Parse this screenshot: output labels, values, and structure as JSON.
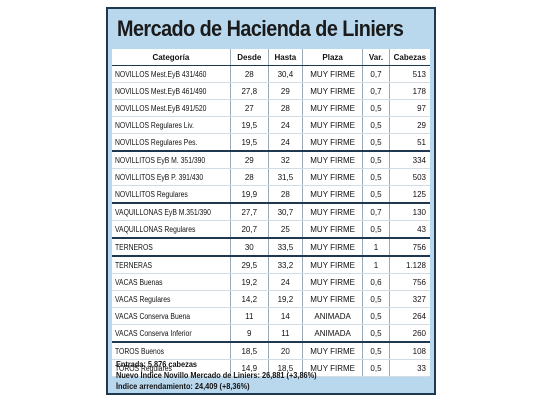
{
  "title": "Mercado de Hacienda de Liniers",
  "headers": [
    "Categoría",
    "Desde",
    "Hasta",
    "Plaza",
    "Var.",
    "Cabezas"
  ],
  "rows": [
    [
      "NOVILLOS Mest.EyB 431/460",
      "28",
      "30,4",
      "MUY FIRME",
      "0,7",
      "513"
    ],
    [
      "NOVILLOS Mest.EyB 461/490",
      "27,8",
      "29",
      "MUY FIRME",
      "0,7",
      "178"
    ],
    [
      "NOVILLOS Mest.EyB 491/520",
      "27",
      "28",
      "MUY FIRME",
      "0,5",
      "97"
    ],
    [
      "NOVILLOS Regulares Liv.",
      "19,5",
      "24",
      "MUY FIRME",
      "0,5",
      "29"
    ],
    [
      "NOVILLOS Regulares Pes.",
      "19,5",
      "24",
      "MUY FIRME",
      "0,5",
      "51"
    ],
    [
      "NOVILLITOS EyB M. 351/390",
      "29",
      "32",
      "MUY FIRME",
      "0,5",
      "334"
    ],
    [
      "NOVILLITOS EyB P. 391/430",
      "28",
      "31,5",
      "MUY FIRME",
      "0,5",
      "503"
    ],
    [
      "NOVILLITOS Regulares",
      "19,9",
      "28",
      "MUY FIRME",
      "0,5",
      "125"
    ],
    [
      "VAQUILLONAS EyB M.351/390",
      "27,7",
      "30,7",
      "MUY FIRME",
      "0,7",
      "130"
    ],
    [
      "VAQUILLONAS Regulares",
      "20,7",
      "25",
      "MUY FIRME",
      "0,5",
      "43"
    ],
    [
      "TERNEROS",
      "30",
      "33,5",
      "MUY FIRME",
      "1",
      "756"
    ],
    [
      "TERNERAS",
      "29,5",
      "33,2",
      "MUY FIRME",
      "1",
      "1.128"
    ],
    [
      "VACAS Buenas",
      "19,2",
      "24",
      "MUY FIRME",
      "0,6",
      "756"
    ],
    [
      "VACAS Regulares",
      "14,2",
      "19,2",
      "MUY FIRME",
      "0,5",
      "327"
    ],
    [
      "VACAS Conserva Buena",
      "11",
      "14",
      "ANIMADA",
      "0,5",
      "264"
    ],
    [
      "VACAS Conserva Inferior",
      "9",
      "11",
      "ANIMADA",
      "0,5",
      "260"
    ],
    [
      "TOROS Buenos",
      "18,5",
      "20",
      "MUY FIRME",
      "0,5",
      "108"
    ],
    [
      "TOROS Regulares",
      "14,9",
      "18,5",
      "MUY FIRME",
      "0,5",
      "33"
    ]
  ],
  "footer": {
    "line1": "Entrada: 5.876 cabezas",
    "line2": "Nuevo Índice Novillo Mercado de Liniers: 26,881 (+3,86%)",
    "line3": "Índice arrendamiento: 24,409 (+8,36%)"
  }
}
